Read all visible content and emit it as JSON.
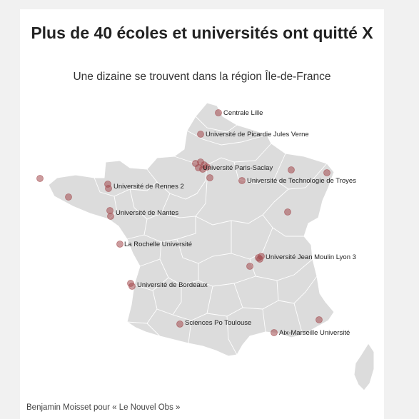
{
  "header": {
    "title": "Plus de 40 écoles et universités ont quitté X",
    "subtitle": "Une dizaine se trouvent dans la région Île-de-France"
  },
  "credit": "Benjamin Moisset pour « Le Nouvel Obs »",
  "colors": {
    "land": "#dcdcdc",
    "borders": "#ffffff",
    "marker": "#a34a4f",
    "background": "#ffffff"
  },
  "labels": {
    "lille": "Centrale Lille",
    "picardie": "Université de Picardie Jules Verne",
    "saclay": "Université Paris-Saclay",
    "troyes": "Université de Technologie de Troyes",
    "rennes": "Université de Rennes 2",
    "nantes": "Université de Nantes",
    "larochelle": "La Rochelle Université",
    "lyon": "Université Jean Moulin Lyon 3",
    "bordeaux": "Université de Bordeaux",
    "toulouse": "Sciences Po Toulouse",
    "marseille": "Aix-Marseille Université"
  }
}
